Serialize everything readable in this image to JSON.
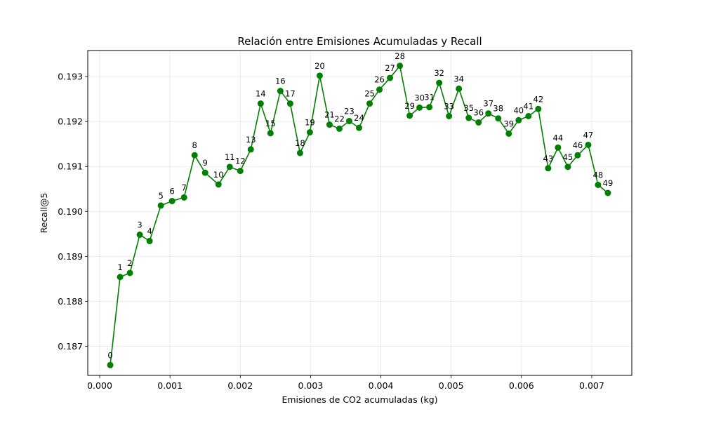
{
  "chart_data": {
    "type": "line",
    "title": "Relación entre Emisiones Acumuladas y Recall",
    "xlabel": "Emisiones de CO2 acumuladas (kg)",
    "ylabel": "Recall@5",
    "xlim": [
      -0.00017,
      0.00757
    ],
    "ylim": [
      0.18635,
      0.19358
    ],
    "xticks": [
      0.0,
      0.001,
      0.002,
      0.003,
      0.004,
      0.005,
      0.006,
      0.007
    ],
    "xtick_labels": [
      "0.000",
      "0.001",
      "0.002",
      "0.003",
      "0.004",
      "0.005",
      "0.006",
      "0.007"
    ],
    "yticks": [
      0.187,
      0.188,
      0.189,
      0.19,
      0.191,
      0.192,
      0.193
    ],
    "ytick_labels": [
      "0.187",
      "0.188",
      "0.189",
      "0.190",
      "0.191",
      "0.192",
      "0.193"
    ],
    "grid": true,
    "color": "#008000",
    "series": [
      {
        "labels": [
          "0",
          "1",
          "2",
          "3",
          "4",
          "5",
          "6",
          "7",
          "8",
          "9",
          "10",
          "11",
          "12",
          "13",
          "14",
          "15",
          "16",
          "17",
          "18",
          "19",
          "20",
          "21",
          "22",
          "23",
          "24",
          "25",
          "26",
          "27",
          "28",
          "29",
          "30",
          "31",
          "32",
          "33",
          "34",
          "35",
          "36",
          "37",
          "38",
          "39",
          "40",
          "41",
          "42",
          "43",
          "44",
          "45",
          "46",
          "47",
          "48",
          "49"
        ],
        "x": [
          0.00015,
          0.00029,
          0.00043,
          0.00057,
          0.00071,
          0.00087,
          0.00103,
          0.0012,
          0.00135,
          0.0015,
          0.00169,
          0.00185,
          0.002,
          0.00215,
          0.00229,
          0.00243,
          0.00257,
          0.00271,
          0.00285,
          0.00299,
          0.00313,
          0.00327,
          0.00341,
          0.00355,
          0.00369,
          0.00384,
          0.00398,
          0.00413,
          0.00427,
          0.00441,
          0.00455,
          0.00469,
          0.00483,
          0.00497,
          0.00511,
          0.00525,
          0.00539,
          0.00553,
          0.00567,
          0.00582,
          0.00596,
          0.0061,
          0.00624,
          0.00638,
          0.00652,
          0.00666,
          0.0068,
          0.00695,
          0.00709,
          0.00723
        ],
        "y": [
          0.18658,
          0.18854,
          0.18863,
          0.18948,
          0.18934,
          0.19013,
          0.19023,
          0.19031,
          0.19125,
          0.19086,
          0.1906,
          0.19099,
          0.1909,
          0.19138,
          0.1924,
          0.19174,
          0.19268,
          0.1924,
          0.1913,
          0.19176,
          0.19302,
          0.19193,
          0.19184,
          0.19201,
          0.19186,
          0.1924,
          0.19271,
          0.19297,
          0.19324,
          0.19213,
          0.19231,
          0.19232,
          0.19286,
          0.19212,
          0.19273,
          0.19208,
          0.19198,
          0.19218,
          0.19207,
          0.19173,
          0.19203,
          0.19212,
          0.19228,
          0.19096,
          0.19142,
          0.19099,
          0.19125,
          0.19148,
          0.19059,
          0.19041
        ]
      }
    ]
  }
}
